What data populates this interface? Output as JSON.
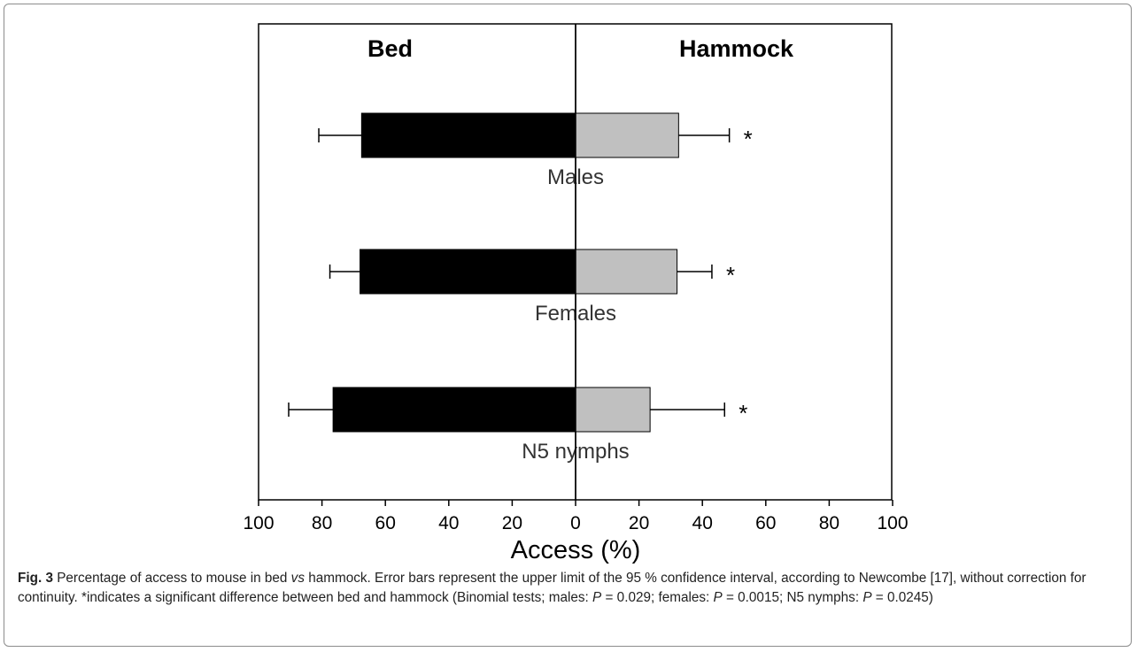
{
  "chart_data": {
    "type": "bar",
    "orientation": "horizontal",
    "layout": "back-to-back",
    "sides": [
      "Bed",
      "Hammock"
    ],
    "categories": [
      "Males",
      "Females",
      "N5 nymphs"
    ],
    "series": [
      {
        "name": "Bed",
        "values": [
          67.5,
          68,
          76.5
        ],
        "ci_upper": [
          81,
          77.5,
          90.5
        ],
        "color": "#000000"
      },
      {
        "name": "Hammock",
        "values": [
          32.5,
          32,
          23.5
        ],
        "ci_upper": [
          48.5,
          43,
          47
        ],
        "color": "#c0c0c0"
      }
    ],
    "significance_marker": "*",
    "x_ticks": [
      "100",
      "80",
      "60",
      "40",
      "20",
      "0",
      "20",
      "40",
      "60",
      "80",
      "100"
    ],
    "xlim": [
      -100,
      100
    ],
    "xlabel": "Access (%)",
    "grid": false,
    "legend": "none"
  },
  "caption": {
    "fig_label": "Fig. 3",
    "p1": " Percentage of access to mouse in bed ",
    "vs": "vs",
    "p2": " hammock. Error bars represent the upper limit of the 95 % confidence interval, according to Newcombe [17], without correction for continuity. *indicates a significant difference between bed and hammock (Binomial tests; males: ",
    "P": "P",
    "males_p": " = 0.029; females: ",
    "females_p": " = 0.0015; N5 nymphs: ",
    "nymphs_p": " = 0.0245)"
  }
}
